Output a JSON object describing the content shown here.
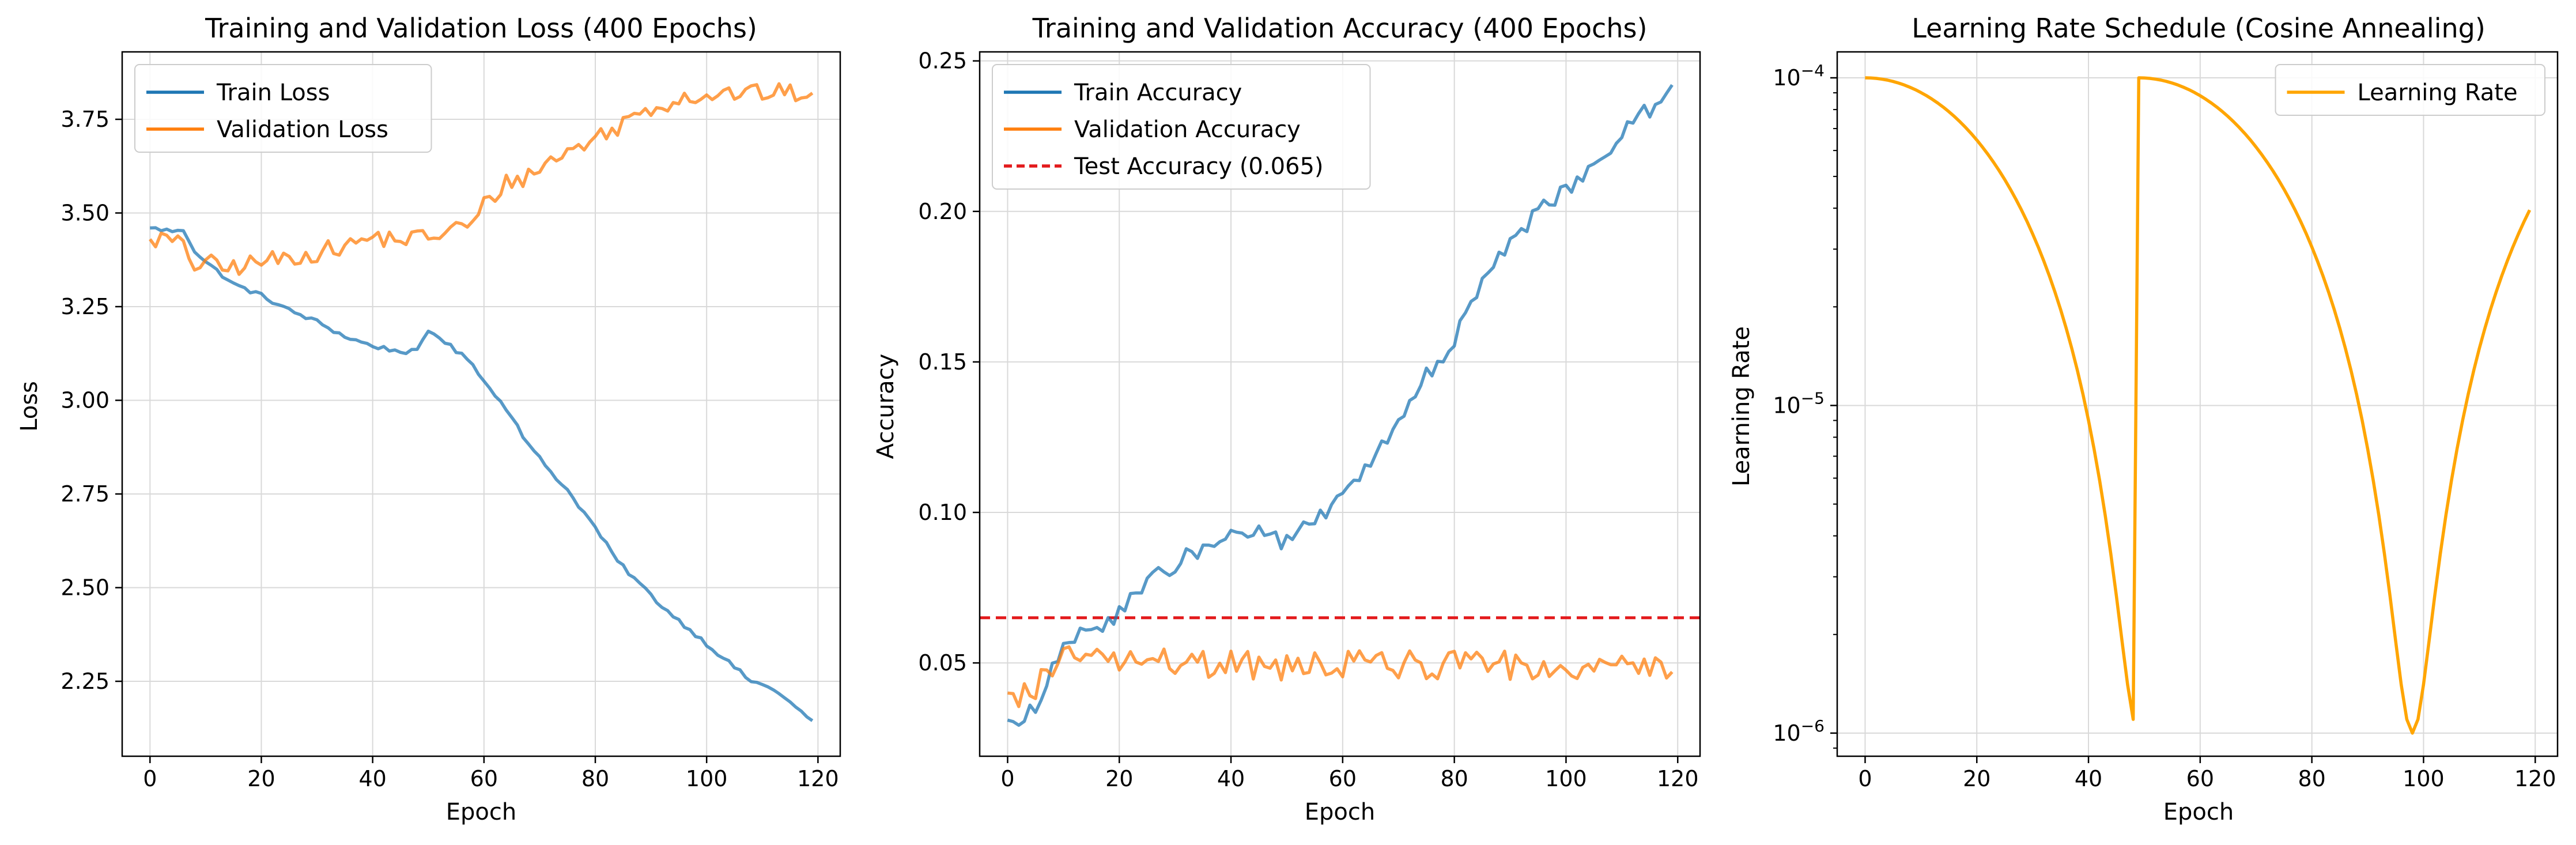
{
  "chart_data": [
    {
      "type": "line",
      "title": "Training and Validation Loss (400 Epochs)",
      "xlabel": "Epoch",
      "ylabel": "Loss",
      "xlim": [
        -5,
        124
      ],
      "ylim": [
        2.05,
        3.93
      ],
      "grid": true,
      "legend": "upper left",
      "xticks": [
        0,
        20,
        40,
        60,
        80,
        100,
        120
      ],
      "xtick_labels": [
        "0",
        "20",
        "40",
        "60",
        "80",
        "100",
        "120"
      ],
      "yticks": [
        2.25,
        2.5,
        2.75,
        3.0,
        3.25,
        3.5,
        3.75
      ],
      "ytick_labels": [
        "2.25",
        "2.50",
        "2.75",
        "3.00",
        "3.25",
        "3.50",
        "3.75"
      ],
      "series": [
        {
          "name": "Train Loss",
          "color": "#1f77b4",
          "knots": [
            [
              0,
              3.46
            ],
            [
              5,
              3.45
            ],
            [
              6,
              3.455
            ],
            [
              8,
              3.4
            ],
            [
              10,
              3.37
            ],
            [
              15,
              3.31
            ],
            [
              20,
              3.28
            ],
            [
              25,
              3.24
            ],
            [
              30,
              3.21
            ],
            [
              35,
              3.17
            ],
            [
              40,
              3.145
            ],
            [
              45,
              3.13
            ],
            [
              48,
              3.13
            ],
            [
              50,
              3.185
            ],
            [
              52,
              3.17
            ],
            [
              55,
              3.13
            ],
            [
              58,
              3.1
            ],
            [
              60,
              3.05
            ],
            [
              65,
              2.96
            ],
            [
              68,
              2.88
            ],
            [
              72,
              2.81
            ],
            [
              75,
              2.76
            ],
            [
              80,
              2.66
            ],
            [
              84,
              2.57
            ],
            [
              88,
              2.51
            ],
            [
              92,
              2.45
            ],
            [
              96,
              2.4
            ],
            [
              100,
              2.35
            ],
            [
              104,
              2.3
            ],
            [
              108,
              2.25
            ],
            [
              112,
              2.23
            ],
            [
              116,
              2.18
            ],
            [
              119,
              2.145
            ]
          ],
          "noise": 0.006
        },
        {
          "name": "Validation Loss",
          "color": "#ff7f0e",
          "knots": [
            [
              0,
              3.43
            ],
            [
              3,
              3.43
            ],
            [
              6,
              3.41
            ],
            [
              8,
              3.36
            ],
            [
              10,
              3.37
            ],
            [
              13,
              3.35
            ],
            [
              20,
              3.37
            ],
            [
              25,
              3.38
            ],
            [
              30,
              3.395
            ],
            [
              35,
              3.41
            ],
            [
              40,
              3.435
            ],
            [
              45,
              3.43
            ],
            [
              50,
              3.435
            ],
            [
              55,
              3.46
            ],
            [
              58,
              3.47
            ],
            [
              60,
              3.52
            ],
            [
              64,
              3.58
            ],
            [
              68,
              3.6
            ],
            [
              72,
              3.64
            ],
            [
              76,
              3.67
            ],
            [
              80,
              3.7
            ],
            [
              84,
              3.73
            ],
            [
              88,
              3.77
            ],
            [
              92,
              3.79
            ],
            [
              96,
              3.81
            ],
            [
              100,
              3.815
            ],
            [
              105,
              3.82
            ],
            [
              110,
              3.82
            ],
            [
              115,
              3.82
            ],
            [
              119,
              3.82
            ]
          ],
          "noise": 0.025
        }
      ]
    },
    {
      "type": "line",
      "title": "Training and Validation Accuracy (400 Epochs)",
      "xlabel": "Epoch",
      "ylabel": "Accuracy",
      "xlim": [
        -5,
        124
      ],
      "ylim": [
        0.019,
        0.253
      ],
      "grid": true,
      "legend": "upper left",
      "xticks": [
        0,
        20,
        40,
        60,
        80,
        100,
        120
      ],
      "xtick_labels": [
        "0",
        "20",
        "40",
        "60",
        "80",
        "100",
        "120"
      ],
      "yticks": [
        0.05,
        0.1,
        0.15,
        0.2,
        0.25
      ],
      "ytick_labels": [
        "0.05",
        "0.10",
        "0.15",
        "0.20",
        "0.25"
      ],
      "hline": {
        "name": "Test Accuracy (0.065)",
        "value": 0.065,
        "color": "#e31a1c"
      },
      "series": [
        {
          "name": "Train Accuracy",
          "color": "#1f77b4",
          "knots": [
            [
              0,
              0.031
            ],
            [
              2,
              0.03
            ],
            [
              4,
              0.033
            ],
            [
              6,
              0.038
            ],
            [
              8,
              0.047
            ],
            [
              10,
              0.055
            ],
            [
              15,
              0.061
            ],
            [
              20,
              0.067
            ],
            [
              25,
              0.076
            ],
            [
              30,
              0.083
            ],
            [
              35,
              0.088
            ],
            [
              40,
              0.092
            ],
            [
              45,
              0.094
            ],
            [
              50,
              0.09
            ],
            [
              55,
              0.097
            ],
            [
              60,
              0.105
            ],
            [
              65,
              0.116
            ],
            [
              70,
              0.13
            ],
            [
              75,
              0.145
            ],
            [
              80,
              0.158
            ],
            [
              85,
              0.175
            ],
            [
              90,
              0.19
            ],
            [
              95,
              0.2
            ],
            [
              100,
              0.207
            ],
            [
              105,
              0.216
            ],
            [
              110,
              0.226
            ],
            [
              115,
              0.234
            ],
            [
              119,
              0.242
            ]
          ],
          "noise": 0.003
        },
        {
          "name": "Validation Accuracy",
          "color": "#ff7f0e",
          "knots": [
            [
              0,
              0.04
            ],
            [
              1,
              0.036
            ],
            [
              3,
              0.045
            ],
            [
              5,
              0.04
            ],
            [
              8,
              0.05
            ],
            [
              12,
              0.052
            ],
            [
              20,
              0.051
            ],
            [
              30,
              0.05
            ],
            [
              40,
              0.049
            ],
            [
              50,
              0.049
            ],
            [
              60,
              0.05
            ],
            [
              70,
              0.05
            ],
            [
              80,
              0.049
            ],
            [
              90,
              0.049
            ],
            [
              100,
              0.05
            ],
            [
              110,
              0.049
            ],
            [
              119,
              0.047
            ]
          ],
          "noise": 0.005
        }
      ]
    },
    {
      "type": "line",
      "title": "Learning Rate Schedule (Cosine Annealing)",
      "xlabel": "Epoch",
      "ylabel": "Learning Rate",
      "xlim": [
        -5,
        124
      ],
      "ylim": [
        8.5e-07,
        0.00012
      ],
      "yscale": "log",
      "grid": true,
      "legend": "upper right",
      "xticks": [
        0,
        20,
        40,
        60,
        80,
        100,
        120
      ],
      "xtick_labels": [
        "0",
        "20",
        "40",
        "60",
        "80",
        "100",
        "120"
      ],
      "yticks": [
        1e-06,
        1e-05,
        0.0001
      ],
      "ytick_labels": [
        {
          "base": "10",
          "exp": "−6"
        },
        {
          "base": "10",
          "exp": "−5"
        },
        {
          "base": "10",
          "exp": "−4"
        }
      ],
      "series": [
        {
          "name": "Learning Rate",
          "color": "#ffa500",
          "schedule": {
            "max": 0.0001,
            "min": 1e-06,
            "restart_epoch": 49,
            "period": 49,
            "end_epoch": 119
          }
        }
      ]
    }
  ]
}
